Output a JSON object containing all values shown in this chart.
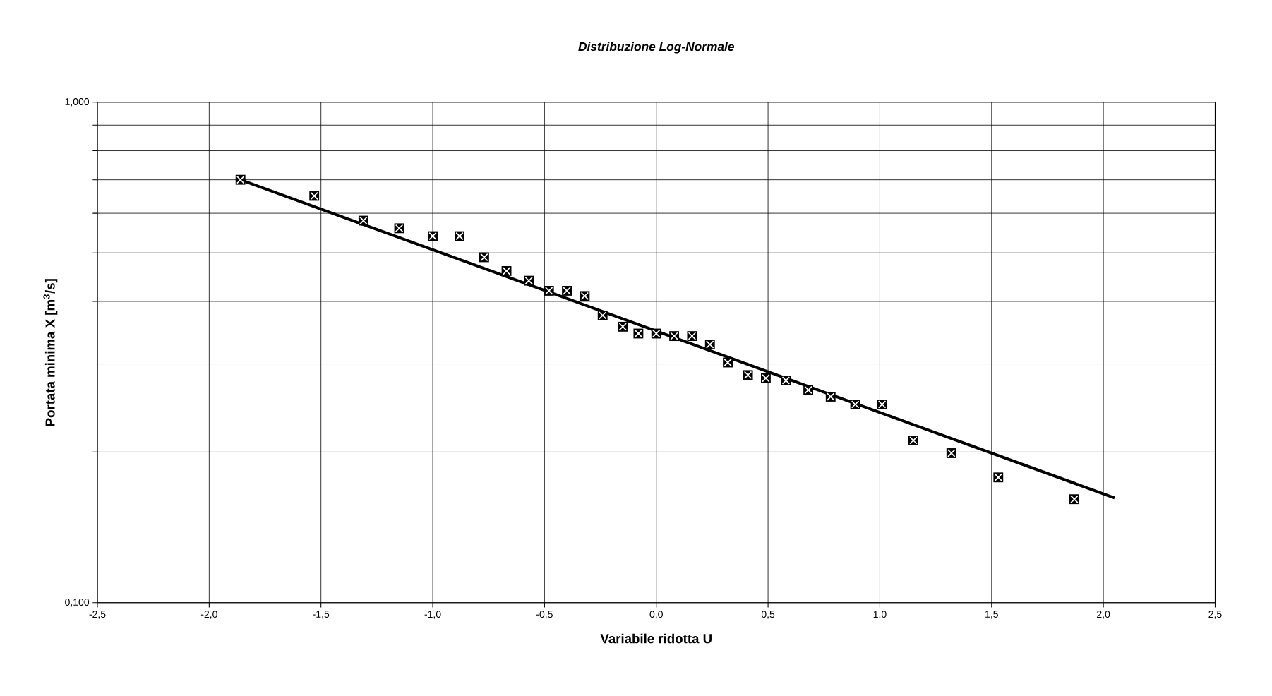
{
  "chart_data": {
    "type": "scatter",
    "title": "*Distribuzione Log-Normale*",
    "xlabel": "Variabile ridotta U",
    "ylabel": "Portata minima X [m$^{3}$/s]",
    "log": "y",
    "grid": true,
    "xlim": [
      -2.5,
      2.5
    ],
    "ylim": [
      0.1,
      1.0
    ],
    "xticks": [
      {
        "value": -2.5,
        "label": "-2,5"
      },
      {
        "value": -2.0,
        "label": "-2,0"
      },
      {
        "value": -1.5,
        "label": "-1,5"
      },
      {
        "value": -1.0,
        "label": "-1,0"
      },
      {
        "value": -0.5,
        "label": "-0,5"
      },
      {
        "value": 0.0,
        "label": "0,0"
      },
      {
        "value": 0.5,
        "label": "0,5"
      },
      {
        "value": 1.0,
        "label": "1,0"
      },
      {
        "value": 1.5,
        "label": "1,5"
      },
      {
        "value": 2.0,
        "label": "2,0"
      },
      {
        "value": 2.5,
        "label": "2,5"
      }
    ],
    "yticks": [
      {
        "value": 0.1,
        "label": "0,100"
      },
      {
        "value": 0.2,
        "label": null
      },
      {
        "value": 0.3,
        "label": null
      },
      {
        "value": 0.4,
        "label": null
      },
      {
        "value": 0.5,
        "label": null
      },
      {
        "value": 0.6,
        "label": null
      },
      {
        "value": 0.7,
        "label": null
      },
      {
        "value": 0.8,
        "label": null
      },
      {
        "value": 0.9,
        "label": null
      },
      {
        "value": 1.0,
        "label": "1,000"
      }
    ],
    "series": [
      {
        "type": "line",
        "color": "#000000",
        "x": [
          -1.86,
          2.05
        ],
        "values": [
          0.7,
          0.162
        ]
      },
      {
        "type": "scatter",
        "color": "#000000",
        "marker": "square",
        "x": [
          -1.86,
          -1.53,
          -1.31,
          -1.15,
          -1.0,
          -0.88,
          -0.77,
          -0.67,
          -0.57,
          -0.48,
          -0.4,
          -0.32,
          -0.24,
          -0.15,
          -0.08,
          0.0,
          0.08,
          0.16,
          0.24,
          0.32,
          0.41,
          0.49,
          0.58,
          0.68,
          0.78,
          0.89,
          1.01,
          1.15,
          1.32,
          1.53,
          1.87
        ],
        "values": [
          0.7,
          0.65,
          0.58,
          0.56,
          0.54,
          0.54,
          0.49,
          0.46,
          0.44,
          0.42,
          0.42,
          0.41,
          0.375,
          0.356,
          0.345,
          0.345,
          0.341,
          0.341,
          0.328,
          0.302,
          0.285,
          0.281,
          0.278,
          0.266,
          0.258,
          0.249,
          0.249,
          0.211,
          0.199,
          0.178,
          0.161
        ]
      }
    ]
  }
}
